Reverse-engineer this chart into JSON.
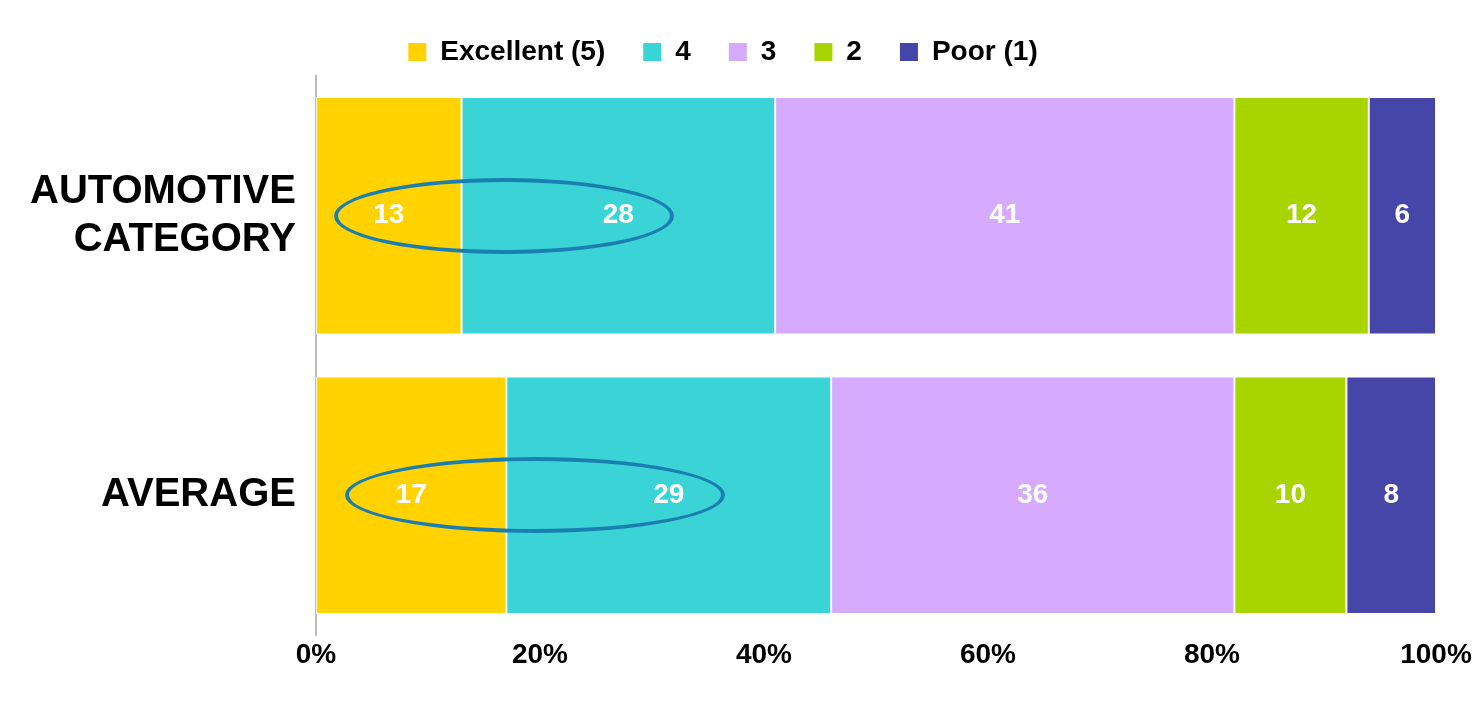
{
  "chart_data": {
    "type": "bar",
    "orientation": "horizontal",
    "stacked": true,
    "categories": [
      "AUTOMOTIVE CATEGORY",
      "AVERAGE"
    ],
    "series": [
      {
        "name": "Excellent (5)",
        "color": "#ffd200",
        "values": [
          13,
          17
        ]
      },
      {
        "name": "4",
        "color": "#3ad4d6",
        "values": [
          28,
          29
        ]
      },
      {
        "name": "3",
        "color": "#d6aaff",
        "values": [
          41,
          36
        ]
      },
      {
        "name": "2",
        "color": "#a8d400",
        "values": [
          12,
          10
        ]
      },
      {
        "name": "Poor (1)",
        "color": "#4646a8",
        "values": [
          6,
          8
        ]
      }
    ],
    "xlim": [
      0,
      100
    ],
    "xticks": [
      {
        "value": 0,
        "label": "0%"
      },
      {
        "value": 20,
        "label": "20%"
      },
      {
        "value": 40,
        "label": "40%"
      },
      {
        "value": 60,
        "label": "60%"
      },
      {
        "value": 80,
        "label": "80%"
      },
      {
        "value": 100,
        "label": "100%"
      }
    ],
    "data_labels": true,
    "grid": false,
    "legend": "top"
  }
}
